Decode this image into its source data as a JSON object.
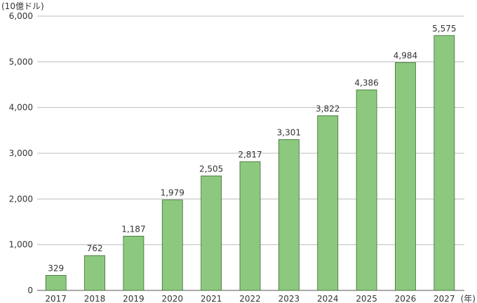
{
  "chart_data": {
    "type": "bar",
    "title": "",
    "y_unit_label": "(10億ドル)",
    "x_unit_label": "(年)",
    "categories": [
      "2017",
      "2018",
      "2019",
      "2020",
      "2021",
      "2022",
      "2023",
      "2024",
      "2025",
      "2026",
      "2027"
    ],
    "values": [
      329,
      762,
      1187,
      1979,
      2505,
      2817,
      3301,
      3822,
      4386,
      4984,
      5575
    ],
    "value_labels": [
      "329",
      "762",
      "1,187",
      "1,979",
      "2,505",
      "2,817",
      "3,301",
      "3,822",
      "4,386",
      "4,984",
      "5,575"
    ],
    "ylim": [
      0,
      6000
    ],
    "yticks": [
      0,
      1000,
      2000,
      3000,
      4000,
      5000,
      6000
    ],
    "ytick_labels": [
      "0",
      "1,000",
      "2,000",
      "3,000",
      "4,000",
      "5,000",
      "6,000"
    ],
    "grid": true,
    "legend": "none",
    "colors": {
      "bar_fill": "#8cc97e",
      "bar_stroke": "#3d6b35",
      "grid": "#bdbdbd",
      "axis": "#555555"
    }
  }
}
